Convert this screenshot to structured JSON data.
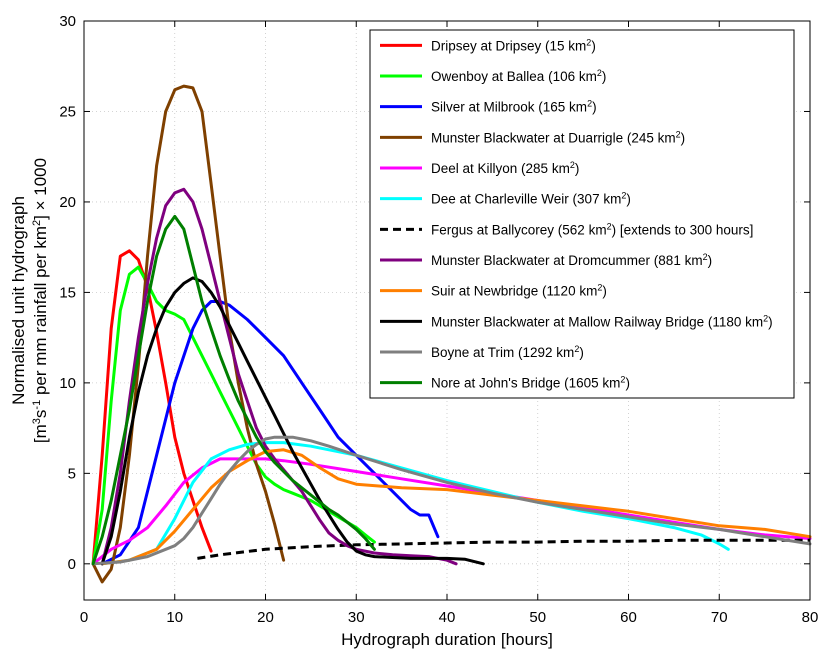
{
  "chart_data": {
    "type": "line",
    "xlabel": "Hydrograph duration [hours]",
    "ylabel_line1": "Normalised unit hydrograph",
    "ylabel_line2_parts": [
      "[m",
      "3",
      "s",
      "-1",
      " per mm rainfall per km",
      "2",
      "] × 1000"
    ],
    "xlim": [
      0,
      80
    ],
    "ylim": [
      -2,
      30
    ],
    "xticks": [
      0,
      10,
      20,
      30,
      40,
      50,
      60,
      70,
      80
    ],
    "yticks": [
      0,
      5,
      10,
      15,
      20,
      25,
      30
    ],
    "grid": true,
    "legend_position": "top-right",
    "series": [
      {
        "name": "Dripsey at Dripsey (15 km",
        "sup": "2",
        "tail": ")",
        "color": "#ff0000",
        "dash": false,
        "x": [
          1,
          2,
          3,
          4,
          5,
          6,
          7,
          8,
          9,
          10,
          11,
          12,
          13,
          14
        ],
        "y": [
          0,
          6,
          13,
          17,
          17.3,
          16.8,
          15.3,
          12.8,
          10,
          7,
          5,
          3.5,
          2,
          0.7
        ]
      },
      {
        "name": "Owenboy at Ballea (106 km",
        "sup": "2",
        "tail": ")",
        "color": "#00ff00",
        "dash": false,
        "x": [
          1,
          2,
          3,
          4,
          5,
          6,
          7,
          8,
          9,
          10,
          11,
          12,
          13,
          14,
          15,
          16,
          17,
          18,
          19,
          20,
          21,
          22,
          23,
          24,
          25,
          26,
          27,
          28,
          29,
          30,
          31,
          32
        ],
        "y": [
          0,
          3,
          9,
          14,
          16,
          16.4,
          15.5,
          14.5,
          14,
          13.8,
          13.5,
          12.5,
          11.5,
          10.5,
          9.5,
          8.5,
          7.5,
          6.5,
          5.5,
          4.8,
          4.4,
          4.1,
          3.9,
          3.7,
          3.5,
          3.2,
          2.9,
          2.6,
          2.3,
          2,
          1.6,
          1.2
        ]
      },
      {
        "name": "Silver at Milbrook (165 km",
        "sup": "2",
        "tail": ")",
        "color": "#0000ff",
        "dash": false,
        "x": [
          2,
          4,
          6,
          8,
          10,
          12,
          13,
          14,
          15,
          16,
          18,
          20,
          22,
          24,
          26,
          28,
          30,
          32,
          34,
          36,
          37,
          38,
          39
        ],
        "y": [
          0,
          0.5,
          2,
          6,
          10,
          13,
          14,
          14.5,
          14.5,
          14.3,
          13.5,
          12.5,
          11.5,
          10,
          8.5,
          7,
          6,
          5,
          4,
          3,
          2.7,
          2.7,
          1.5
        ]
      },
      {
        "name": "Munster Blackwater at Duarrigle (245 km",
        "sup": "2",
        "tail": ")",
        "color": "#7f4000",
        "dash": false,
        "x": [
          1,
          2,
          3,
          4,
          5,
          6,
          7,
          8,
          9,
          10,
          11,
          12,
          13,
          14,
          15,
          16,
          17,
          18,
          19,
          20,
          21,
          22
        ],
        "y": [
          0,
          -1,
          -0.3,
          2,
          6,
          11,
          17,
          22,
          25,
          26.2,
          26.4,
          26.3,
          25,
          21,
          17,
          13,
          10,
          7.5,
          5.5,
          4,
          2.2,
          0.2
        ]
      },
      {
        "name": "Deel at Killyon (285 km",
        "sup": "2",
        "tail": ")",
        "color": "#ff00ff",
        "dash": false,
        "x": [
          1,
          3,
          5,
          7,
          9,
          11,
          13,
          15,
          17,
          19,
          20,
          22,
          25,
          30,
          35,
          40,
          45,
          50,
          55,
          60,
          65,
          70,
          75,
          80
        ],
        "y": [
          0,
          0.8,
          1.3,
          2,
          3.2,
          4.5,
          5.3,
          5.8,
          5.8,
          5.8,
          5.8,
          5.7,
          5.5,
          5.1,
          4.7,
          4.3,
          3.9,
          3.5,
          3.1,
          2.7,
          2.3,
          1.9,
          1.6,
          1.4
        ]
      },
      {
        "name": "Dee at Charleville Weir (307 km",
        "sup": "2",
        "tail": ")",
        "color": "#00ffff",
        "dash": false,
        "x": [
          2,
          5,
          8,
          10,
          12,
          14,
          16,
          18,
          20,
          22,
          25,
          30,
          35,
          40,
          45,
          50,
          55,
          60,
          65,
          68,
          70,
          71
        ],
        "y": [
          0,
          0.2,
          0.8,
          2.5,
          4.5,
          5.8,
          6.3,
          6.6,
          6.7,
          6.7,
          6.5,
          6,
          5.3,
          4.6,
          4,
          3.4,
          2.9,
          2.5,
          2,
          1.6,
          1.1,
          0.8
        ]
      },
      {
        "name": "Fergus at Ballycorey (562 km",
        "sup": "2",
        "tail": ") [extends to 300 hours]",
        "color": "#000000",
        "dash": true,
        "x": [
          12.5,
          15,
          20,
          25,
          30,
          35,
          40,
          45,
          50,
          55,
          60,
          65,
          70,
          75,
          80
        ],
        "y": [
          0.3,
          0.5,
          0.8,
          0.95,
          1.05,
          1.1,
          1.15,
          1.2,
          1.2,
          1.25,
          1.25,
          1.3,
          1.3,
          1.3,
          1.3
        ]
      },
      {
        "name": "Munster Blackwater at Dromcummer (881 km",
        "sup": "2",
        "tail": ")",
        "color": "#7f007f",
        "dash": false,
        "x": [
          2,
          3,
          4,
          5,
          6,
          7,
          8,
          9,
          10,
          11,
          12,
          13,
          14,
          15,
          16,
          17,
          18,
          19,
          20,
          21,
          22,
          23,
          24,
          25,
          26,
          27,
          28,
          29,
          30,
          32,
          34,
          36,
          38,
          40,
          41
        ],
        "y": [
          0,
          2,
          5,
          9,
          12.5,
          15.5,
          18,
          19.8,
          20.5,
          20.7,
          20,
          18.5,
          16.5,
          14.5,
          12.5,
          10.5,
          9,
          7.5,
          6.5,
          5.8,
          5.2,
          4.6,
          4,
          3.2,
          2.4,
          1.7,
          1.3,
          1,
          0.8,
          0.6,
          0.5,
          0.45,
          0.4,
          0.2,
          0
        ]
      },
      {
        "name": "Suir at Newbridge (1120 km",
        "sup": "2",
        "tail": ")",
        "color": "#ff7f00",
        "dash": false,
        "x": [
          2,
          5,
          8,
          10,
          12,
          14,
          16,
          18,
          20,
          22,
          24,
          26,
          28,
          30,
          35,
          40,
          45,
          50,
          55,
          60,
          65,
          70,
          75,
          80
        ],
        "y": [
          0,
          0.2,
          0.8,
          1.8,
          3,
          4.2,
          5.1,
          5.7,
          6.2,
          6.3,
          6,
          5.3,
          4.7,
          4.4,
          4.2,
          4.1,
          3.8,
          3.5,
          3.2,
          2.9,
          2.5,
          2.1,
          1.9,
          1.5
        ]
      },
      {
        "name": "Munster Blackwater at Mallow Railway Bridge (1180 km",
        "sup": "2",
        "tail": ")",
        "color": "#000000",
        "dash": false,
        "x": [
          2,
          3,
          4,
          5,
          6,
          7,
          8,
          9,
          10,
          11,
          12,
          13,
          14,
          15,
          16,
          17,
          18,
          19,
          20,
          21,
          22,
          23,
          24,
          25,
          26,
          27,
          28,
          29,
          30,
          31,
          32,
          34,
          36,
          38,
          40,
          42,
          44
        ],
        "y": [
          0,
          1.5,
          4,
          7,
          9.5,
          11.5,
          13,
          14.2,
          15,
          15.5,
          15.8,
          15.6,
          15,
          14.2,
          13.2,
          12.2,
          11.2,
          10.2,
          9.2,
          8.2,
          7.2,
          6.2,
          5.3,
          4.4,
          3.5,
          2.7,
          1.9,
          1.2,
          0.7,
          0.5,
          0.4,
          0.35,
          0.3,
          0.3,
          0.3,
          0.25,
          0
        ]
      },
      {
        "name": "Boyne at Trim (1292 km",
        "sup": "2",
        "tail": ")",
        "color": "#7f7f7f",
        "dash": false,
        "x": [
          1,
          4,
          7,
          9,
          10,
          11,
          12,
          13,
          14,
          15,
          16,
          17,
          18,
          19,
          20,
          21,
          22,
          23,
          24,
          25,
          27,
          30,
          35,
          40,
          45,
          50,
          55,
          60,
          65,
          70,
          75,
          80
        ],
        "y": [
          0,
          0.1,
          0.4,
          0.8,
          1,
          1.4,
          2,
          2.8,
          3.6,
          4.4,
          5.1,
          5.7,
          6.2,
          6.6,
          6.9,
          7,
          7,
          7,
          6.9,
          6.8,
          6.5,
          6,
          5.2,
          4.5,
          3.9,
          3.4,
          3,
          2.6,
          2.2,
          1.9,
          1.5,
          1.1
        ]
      },
      {
        "name": "Nore at John's Bridge (1605 km",
        "sup": "2",
        "tail": ")",
        "color": "#007f00",
        "dash": false,
        "x": [
          1,
          2,
          3,
          4,
          5,
          6,
          7,
          8,
          9,
          10,
          11,
          12,
          13,
          14,
          15,
          16,
          17,
          18,
          19,
          20,
          21,
          22,
          23,
          24,
          25,
          26,
          27,
          28,
          29,
          30,
          31,
          32
        ],
        "y": [
          0,
          1.5,
          3.5,
          6,
          8.5,
          11.5,
          14.5,
          17,
          18.5,
          19.2,
          18.5,
          16.5,
          14.5,
          13,
          11.5,
          10.2,
          9,
          8,
          7,
          6.2,
          5.6,
          5.1,
          4.6,
          4.2,
          3.8,
          3.4,
          3,
          2.7,
          2.3,
          1.9,
          1.4,
          0.8
        ]
      }
    ]
  }
}
